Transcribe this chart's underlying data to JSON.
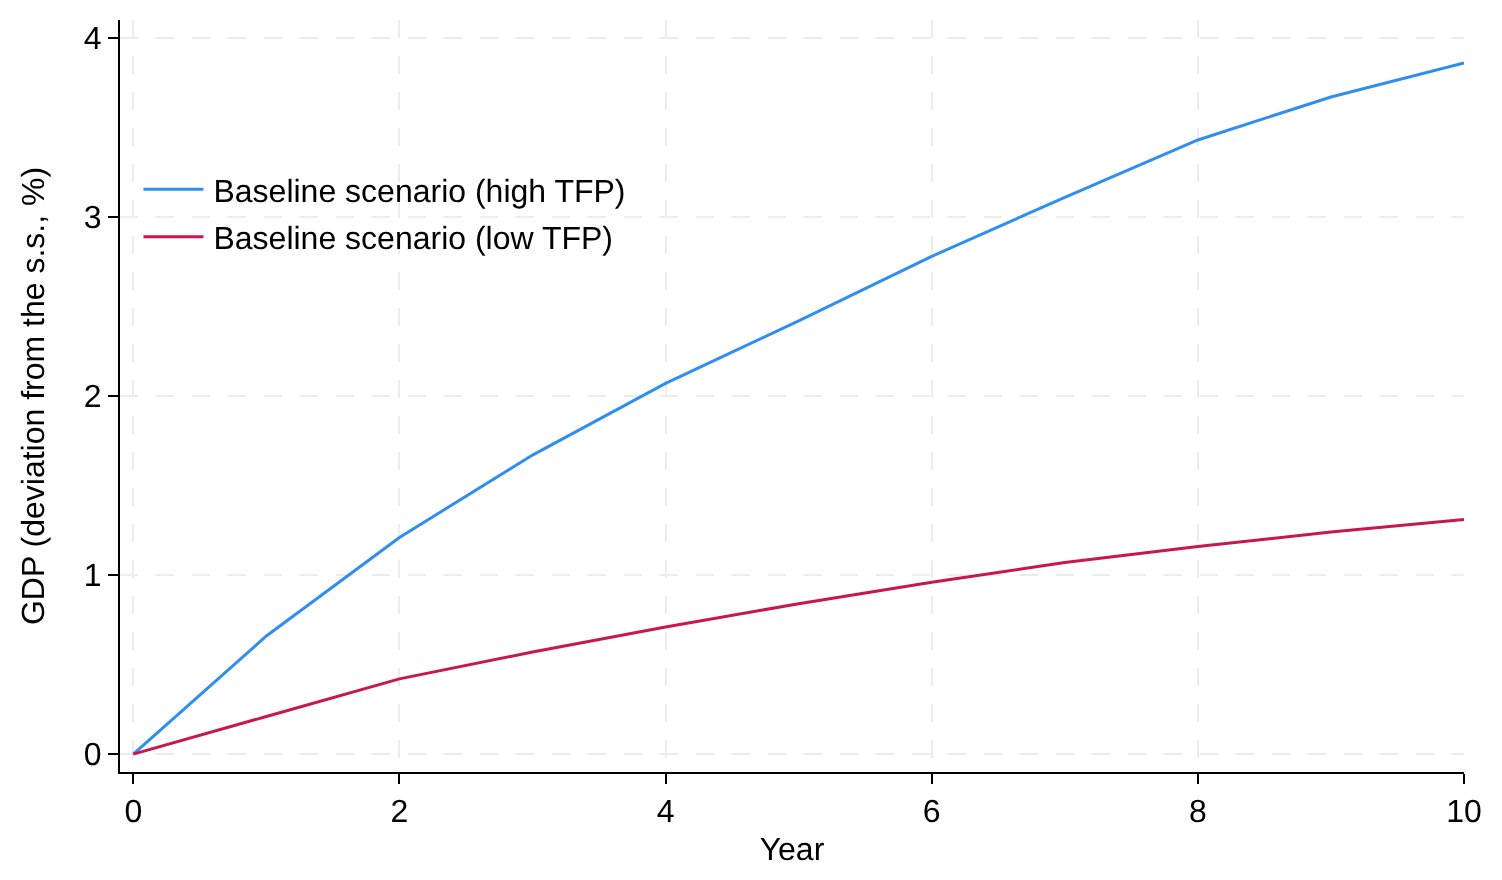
{
  "chart_data": {
    "type": "line",
    "xlabel": "Year",
    "ylabel": "GDP (deviation from the s.s., %)",
    "x": [
      0,
      1,
      2,
      3,
      4,
      5,
      6,
      7,
      8,
      9,
      10
    ],
    "series": [
      {
        "name": "Baseline scenario (high TFP)",
        "color": "#2f8ef0",
        "values": [
          0,
          0.66,
          1.21,
          1.67,
          2.07,
          2.42,
          2.78,
          3.11,
          3.43,
          3.67,
          3.86
        ]
      },
      {
        "name": "Baseline scenario (low TFP)",
        "color": "#c8174f",
        "values": [
          0,
          0.21,
          0.42,
          0.57,
          0.71,
          0.84,
          0.96,
          1.07,
          1.16,
          1.24,
          1.31
        ]
      }
    ],
    "xlim": [
      -0.1,
      10
    ],
    "ylim": [
      -0.1,
      4.1
    ],
    "xticks": [
      0,
      2,
      4,
      6,
      8,
      10
    ],
    "yticks": [
      0,
      1,
      2,
      3,
      4
    ],
    "grid": true,
    "legend": "top left",
    "marker": "none",
    "line_style": "solid"
  }
}
